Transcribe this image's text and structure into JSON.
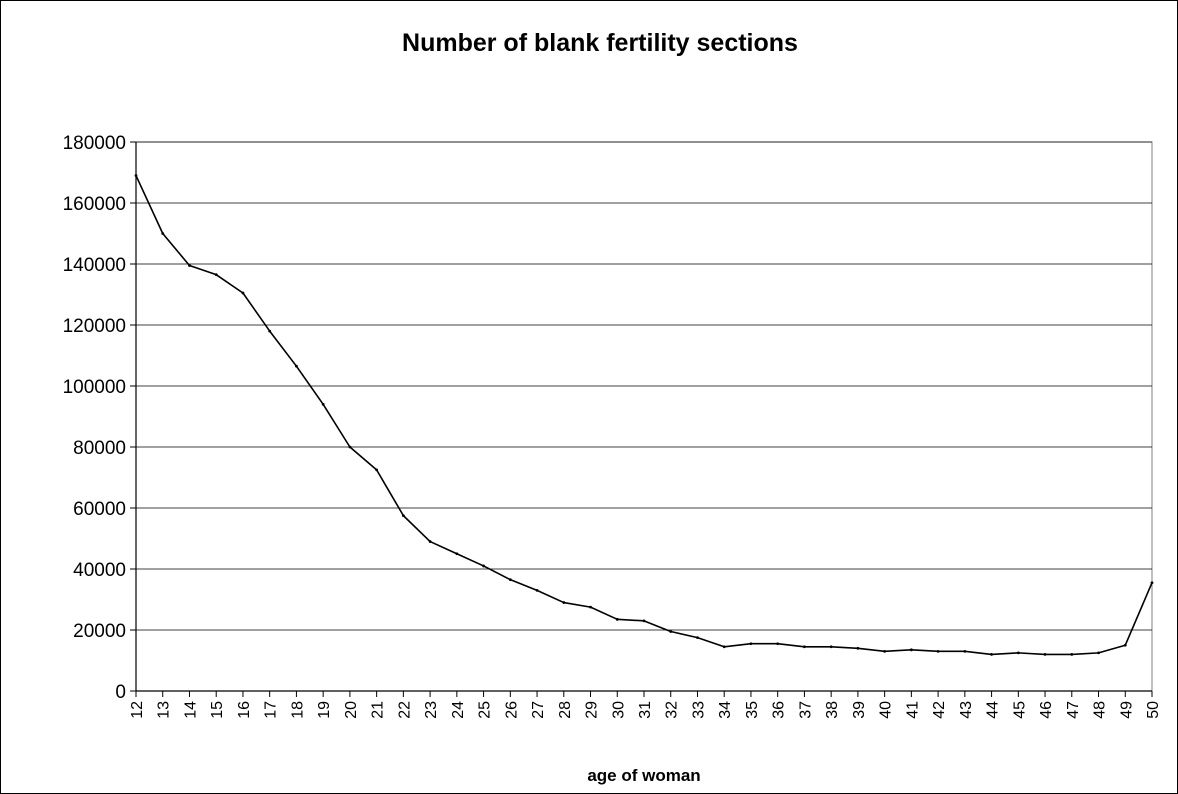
{
  "chart_data": {
    "type": "line",
    "title": "Number of blank fertility sections",
    "xlabel": "age of woman",
    "ylabel": "",
    "ylim": [
      0,
      180000
    ],
    "y_ticks": [
      0,
      20000,
      40000,
      60000,
      80000,
      100000,
      120000,
      140000,
      160000,
      180000
    ],
    "grid": "horizontal",
    "legend": "none",
    "line_color": "#000000",
    "x": [
      12,
      13,
      14,
      15,
      16,
      17,
      18,
      19,
      20,
      21,
      22,
      23,
      24,
      25,
      26,
      27,
      28,
      29,
      30,
      31,
      32,
      33,
      34,
      35,
      36,
      37,
      38,
      39,
      40,
      41,
      42,
      43,
      44,
      45,
      46,
      47,
      48,
      49,
      50
    ],
    "series": [
      {
        "values": [
          169000,
          150000,
          139500,
          136500,
          130500,
          118000,
          106500,
          94000,
          80000,
          72500,
          57500,
          49000,
          45000,
          41000,
          36500,
          33000,
          29000,
          27500,
          23500,
          23000,
          19500,
          17500,
          14500,
          15500,
          15500,
          14500,
          14500,
          14000,
          13000,
          13500,
          13000,
          13000,
          12000,
          12500,
          12000,
          12000,
          12500,
          15000,
          35500
        ]
      }
    ]
  }
}
